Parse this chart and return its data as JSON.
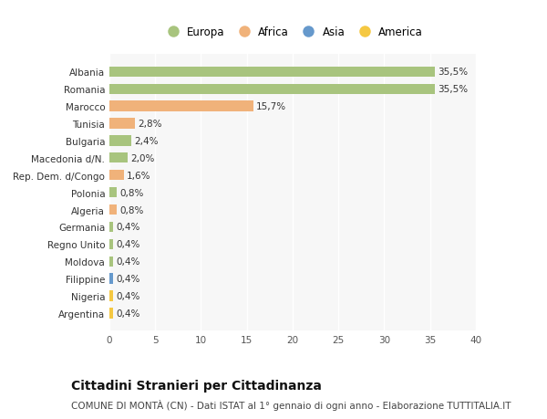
{
  "categories": [
    "Albania",
    "Romania",
    "Marocco",
    "Tunisia",
    "Bulgaria",
    "Macedonia d/N.",
    "Rep. Dem. d/Congo",
    "Polonia",
    "Algeria",
    "Germania",
    "Regno Unito",
    "Moldova",
    "Filippine",
    "Nigeria",
    "Argentina"
  ],
  "values": [
    35.5,
    35.5,
    15.7,
    2.8,
    2.4,
    2.0,
    1.6,
    0.8,
    0.8,
    0.4,
    0.4,
    0.4,
    0.4,
    0.4,
    0.4
  ],
  "labels": [
    "35,5%",
    "35,5%",
    "15,7%",
    "2,8%",
    "2,4%",
    "2,0%",
    "1,6%",
    "0,8%",
    "0,8%",
    "0,4%",
    "0,4%",
    "0,4%",
    "0,4%",
    "0,4%",
    "0,4%"
  ],
  "colors": [
    "#a8c47e",
    "#a8c47e",
    "#f0b27a",
    "#f0b27a",
    "#a8c47e",
    "#a8c47e",
    "#f0b27a",
    "#a8c47e",
    "#f0b27a",
    "#a8c47e",
    "#a8c47e",
    "#a8c47e",
    "#6699cc",
    "#f5c842",
    "#f5c842"
  ],
  "legend_labels": [
    "Europa",
    "Africa",
    "Asia",
    "America"
  ],
  "legend_colors": [
    "#a8c47e",
    "#f0b27a",
    "#6699cc",
    "#f5c842"
  ],
  "xlim": [
    0,
    40
  ],
  "xticks": [
    0,
    5,
    10,
    15,
    20,
    25,
    30,
    35,
    40
  ],
  "title": "Cittadini Stranieri per Cittadinanza",
  "subtitle": "COMUNE DI MONTÀ (CN) - Dati ISTAT al 1° gennaio di ogni anno - Elaborazione TUTTITALIA.IT",
  "bg_color": "#ffffff",
  "plot_bg_color": "#f7f7f7",
  "bar_height": 0.6,
  "grid_color": "#ffffff",
  "label_fontsize": 7.5,
  "ytick_fontsize": 7.5,
  "xtick_fontsize": 7.5,
  "title_fontsize": 10,
  "subtitle_fontsize": 7.5
}
